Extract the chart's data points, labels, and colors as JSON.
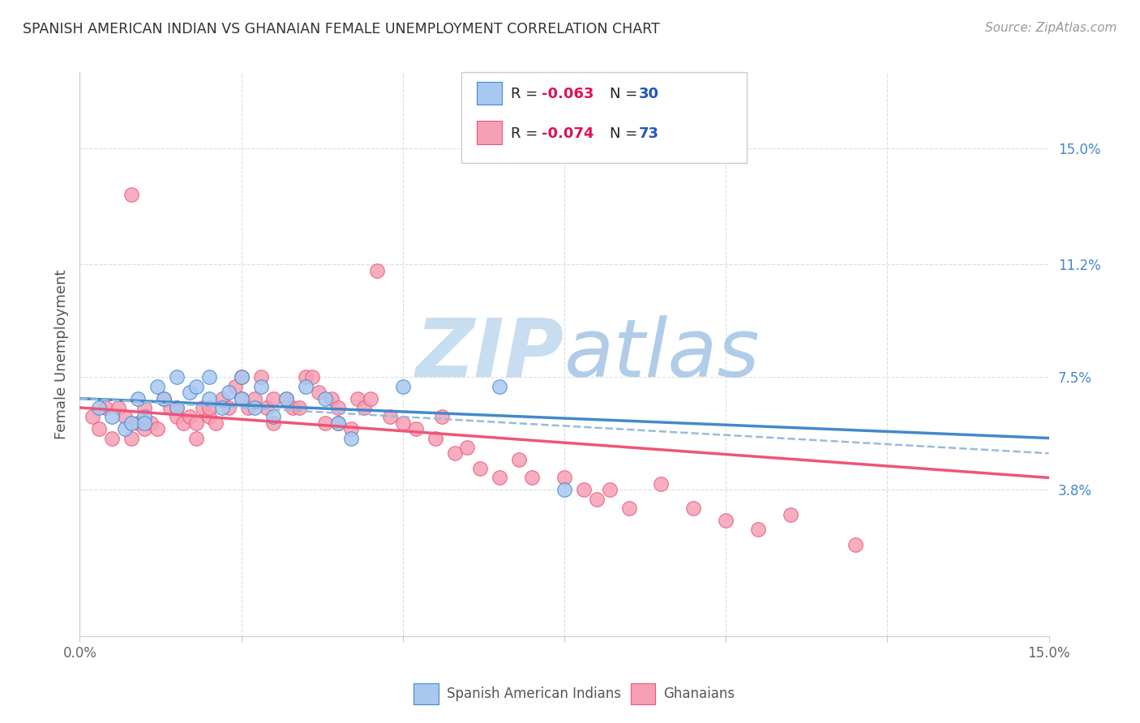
{
  "title": "SPANISH AMERICAN INDIAN VS GHANAIAN FEMALE UNEMPLOYMENT CORRELATION CHART",
  "source": "Source: ZipAtlas.com",
  "ylabel": "Female Unemployment",
  "right_yticks": [
    "15.0%",
    "11.2%",
    "7.5%",
    "3.8%"
  ],
  "right_ytick_vals": [
    0.15,
    0.112,
    0.075,
    0.038
  ],
  "legend_label1": "Spanish American Indians",
  "legend_label2": "Ghanaians",
  "legend_r1": "-0.063",
  "legend_n1": "30",
  "legend_r2": "-0.074",
  "legend_n2": "73",
  "scatter_color_blue": "#a8c8f0",
  "scatter_color_pink": "#f5a0b5",
  "line_color_blue": "#4488cc",
  "line_color_pink": "#ee5577",
  "line_color_dash": "#99bbdd",
  "watermark_color": "#c8ddf0",
  "title_color": "#333333",
  "source_color": "#999999",
  "right_tick_color": "#4488cc",
  "legend_r_color": "#dd1155",
  "legend_n_color": "#2255bb",
  "blue_scatter_x": [
    0.003,
    0.005,
    0.007,
    0.008,
    0.009,
    0.01,
    0.01,
    0.012,
    0.013,
    0.015,
    0.015,
    0.017,
    0.018,
    0.02,
    0.02,
    0.022,
    0.023,
    0.025,
    0.025,
    0.027,
    0.028,
    0.03,
    0.032,
    0.035,
    0.038,
    0.04,
    0.042,
    0.05,
    0.065,
    0.075
  ],
  "blue_scatter_y": [
    0.065,
    0.062,
    0.058,
    0.06,
    0.068,
    0.062,
    0.06,
    0.072,
    0.068,
    0.075,
    0.065,
    0.07,
    0.072,
    0.068,
    0.075,
    0.065,
    0.07,
    0.068,
    0.075,
    0.065,
    0.072,
    0.062,
    0.068,
    0.072,
    0.068,
    0.06,
    0.055,
    0.072,
    0.072,
    0.038
  ],
  "pink_scatter_x": [
    0.002,
    0.003,
    0.004,
    0.005,
    0.006,
    0.007,
    0.008,
    0.008,
    0.009,
    0.01,
    0.01,
    0.011,
    0.012,
    0.013,
    0.014,
    0.015,
    0.015,
    0.016,
    0.017,
    0.018,
    0.018,
    0.019,
    0.02,
    0.02,
    0.021,
    0.022,
    0.023,
    0.024,
    0.025,
    0.025,
    0.026,
    0.027,
    0.028,
    0.029,
    0.03,
    0.03,
    0.032,
    0.033,
    0.034,
    0.035,
    0.036,
    0.037,
    0.038,
    0.039,
    0.04,
    0.04,
    0.042,
    0.043,
    0.044,
    0.045,
    0.046,
    0.048,
    0.05,
    0.052,
    0.055,
    0.056,
    0.058,
    0.06,
    0.062,
    0.065,
    0.068,
    0.07,
    0.075,
    0.078,
    0.08,
    0.082,
    0.085,
    0.09,
    0.095,
    0.1,
    0.105,
    0.11,
    0.12
  ],
  "pink_scatter_y": [
    0.062,
    0.058,
    0.065,
    0.055,
    0.065,
    0.062,
    0.055,
    0.135,
    0.06,
    0.065,
    0.058,
    0.06,
    0.058,
    0.068,
    0.065,
    0.062,
    0.065,
    0.06,
    0.062,
    0.06,
    0.055,
    0.065,
    0.062,
    0.065,
    0.06,
    0.068,
    0.065,
    0.072,
    0.068,
    0.075,
    0.065,
    0.068,
    0.075,
    0.065,
    0.06,
    0.068,
    0.068,
    0.065,
    0.065,
    0.075,
    0.075,
    0.07,
    0.06,
    0.068,
    0.06,
    0.065,
    0.058,
    0.068,
    0.065,
    0.068,
    0.11,
    0.062,
    0.06,
    0.058,
    0.055,
    0.062,
    0.05,
    0.052,
    0.045,
    0.042,
    0.048,
    0.042,
    0.042,
    0.038,
    0.035,
    0.038,
    0.032,
    0.04,
    0.032,
    0.028,
    0.025,
    0.03,
    0.02
  ],
  "xlim": [
    0.0,
    0.15
  ],
  "ylim": [
    -0.01,
    0.175
  ],
  "blue_line_x0": 0.0,
  "blue_line_x1": 0.15,
  "blue_line_y0": 0.068,
  "blue_line_y1": 0.055,
  "pink_line_x0": 0.0,
  "pink_line_x1": 0.15,
  "pink_line_y0": 0.065,
  "pink_line_y1": 0.042,
  "dash_line_x0": 0.0,
  "dash_line_x1": 0.15,
  "dash_line_y0": 0.068,
  "dash_line_y1": 0.05,
  "grid_color": "#dddddd",
  "border_color": "#cccccc"
}
